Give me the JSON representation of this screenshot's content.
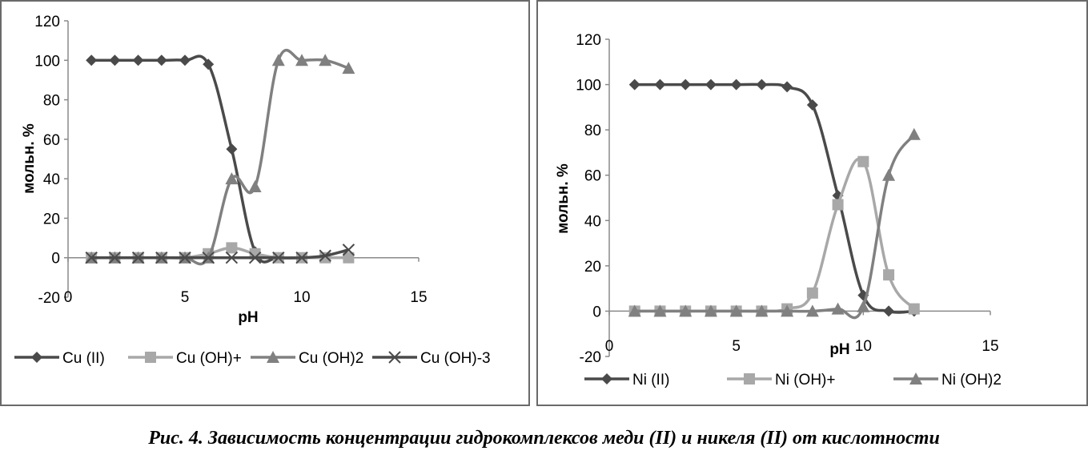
{
  "caption": "Рис. 4. Зависимость концентрации гидрокомплексов меди (II) и никеля (II) от кислотности",
  "colors": {
    "dark": "#4a4a4a",
    "light": "#a8a8a8",
    "mid": "#808080",
    "axis": "#8a8a8a"
  },
  "chart_data": [
    {
      "type": "line",
      "xlabel": "pH",
      "ylabel": "мольн. %",
      "xlim": [
        0,
        15
      ],
      "ylim": [
        -20,
        120
      ],
      "xticks": [
        0,
        5,
        10,
        15
      ],
      "yticks": [
        -20,
        0,
        20,
        40,
        60,
        80,
        100,
        120
      ],
      "legend_position": "bottom",
      "x": [
        1,
        2,
        3,
        4,
        5,
        6,
        7,
        8,
        9,
        10,
        11,
        12
      ],
      "series": [
        {
          "name": "Cu (II)",
          "marker": "diamond",
          "color": "dark",
          "values": [
            100,
            100,
            100,
            100,
            100,
            98,
            55,
            3,
            0,
            0,
            0,
            0
          ]
        },
        {
          "name": "Cu (OH)+",
          "marker": "square",
          "color": "light",
          "values": [
            0,
            0,
            0,
            0,
            0,
            2,
            5,
            2,
            0,
            0,
            0,
            0
          ]
        },
        {
          "name": "Cu (OH)2",
          "marker": "triangle",
          "color": "mid",
          "values": [
            0,
            0,
            0,
            0,
            0,
            0,
            40,
            36,
            100,
            100,
            100,
            96
          ]
        },
        {
          "name": "Cu (OH)-3",
          "marker": "x",
          "color": "dark",
          "values": [
            0,
            0,
            0,
            0,
            0,
            0,
            0,
            0,
            0,
            0,
            1,
            4
          ]
        }
      ]
    },
    {
      "type": "line",
      "xlabel": "pH",
      "ylabel": "мольн. %",
      "xlim": [
        0,
        15
      ],
      "ylim": [
        -20,
        120
      ],
      "xticks": [
        0,
        5,
        10,
        15
      ],
      "yticks": [
        -20,
        0,
        20,
        40,
        60,
        80,
        100,
        120
      ],
      "legend_position": "bottom",
      "x": [
        1,
        2,
        3,
        4,
        5,
        6,
        7,
        8,
        9,
        10,
        11,
        12
      ],
      "series": [
        {
          "name": "Ni (II)",
          "marker": "diamond",
          "color": "dark",
          "values": [
            100,
            100,
            100,
            100,
            100,
            100,
            99,
            91,
            51,
            7,
            0,
            0
          ]
        },
        {
          "name": "Ni (OH)+",
          "marker": "square",
          "color": "light",
          "values": [
            0,
            0,
            0,
            0,
            0,
            0,
            1,
            8,
            47,
            66,
            16,
            1
          ]
        },
        {
          "name": "Ni  (OH)2",
          "marker": "triangle",
          "color": "mid",
          "values": [
            0,
            0,
            0,
            0,
            0,
            0,
            0,
            0,
            1,
            2,
            60,
            78
          ]
        }
      ]
    }
  ]
}
